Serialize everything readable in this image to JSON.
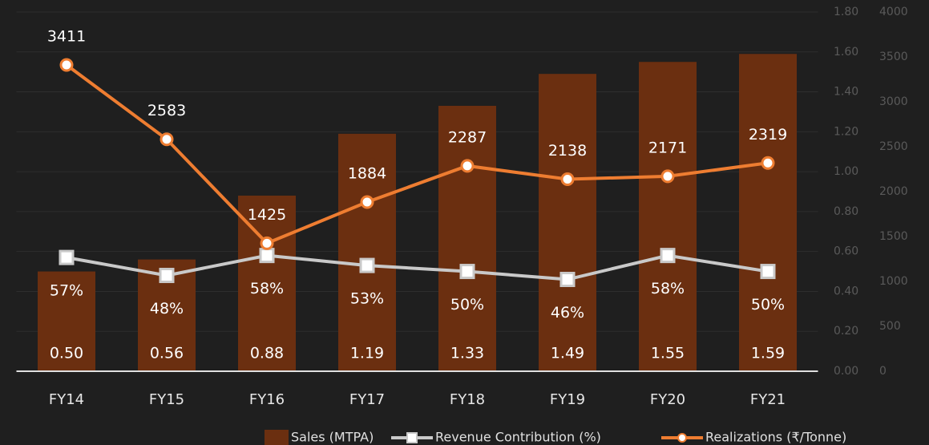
{
  "chart_data": {
    "type": "bar",
    "categories": [
      "FY14",
      "FY15",
      "FY16",
      "FY17",
      "FY18",
      "FY19",
      "FY20",
      "FY21"
    ],
    "series": [
      {
        "name": "Sales (MTPA)",
        "type": "bar",
        "color": "#6b2f10",
        "axis": "y",
        "values": [
          0.5,
          0.56,
          0.88,
          1.19,
          1.33,
          1.49,
          1.55,
          1.59
        ],
        "value_labels": [
          "0.50",
          "0.56",
          "0.88",
          "1.19",
          "1.33",
          "1.49",
          "1.55",
          "1.59"
        ]
      },
      {
        "name": "Revenue Contribution (%)",
        "type": "line",
        "marker": "square",
        "color": "#c9c9c9",
        "axis": "y",
        "values": [
          0.57,
          0.48,
          0.58,
          0.53,
          0.5,
          0.46,
          0.58,
          0.5
        ],
        "value_labels": [
          "57%",
          "48%",
          "58%",
          "53%",
          "50%",
          "46%",
          "58%",
          "50%"
        ]
      },
      {
        "name": "Realizations (₹/Tonne)",
        "type": "line",
        "marker": "circle",
        "color": "#ee7d31",
        "axis": "y2",
        "values": [
          3411,
          2583,
          1425,
          1884,
          2287,
          2138,
          2171,
          2319
        ]
      }
    ],
    "ylim": [
      0,
      1.8
    ],
    "yticks": [
      {
        "value": 0,
        "label": "0.00"
      },
      {
        "value": 0.2,
        "label": "0.20"
      },
      {
        "value": 0.4,
        "label": "0.40"
      },
      {
        "value": 0.6,
        "label": "0.60"
      },
      {
        "value": 0.8,
        "label": "0.80"
      },
      {
        "value": 1.0,
        "label": "1.00"
      },
      {
        "value": 1.2,
        "label": "1.20"
      },
      {
        "value": 1.4,
        "label": "1.40"
      },
      {
        "value": 1.6,
        "label": "1.60"
      },
      {
        "value": 1.8,
        "label": "1.80"
      }
    ],
    "y2lim": [
      0,
      4000
    ],
    "y2ticks": [
      0,
      500,
      1000,
      1500,
      2000,
      2500,
      3000,
      3500,
      4000
    ],
    "grid": true,
    "legend": "bottom"
  }
}
